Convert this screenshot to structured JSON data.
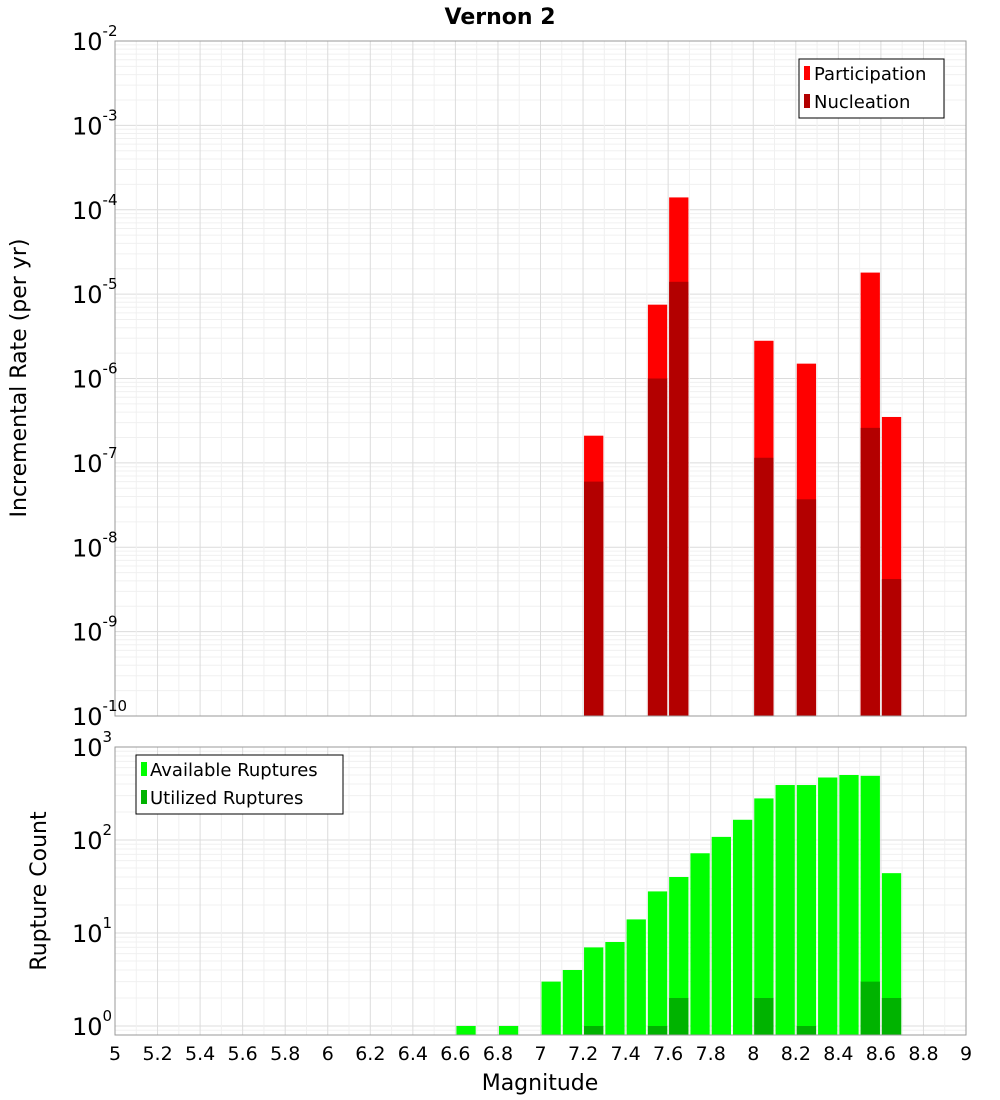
{
  "chart_data": [
    {
      "type": "bar",
      "title": "Vernon 2",
      "xlabel": "",
      "ylabel": "Incremental Rate (per yr)",
      "yscale": "log",
      "xlim": [
        5,
        9
      ],
      "ylim": [
        1e-10,
        0.01
      ],
      "y_ticks": [
        "10^-10",
        "10^-9",
        "10^-8",
        "10^-7",
        "10^-6",
        "10^-5",
        "10^-4",
        "10^-3",
        "10^-2"
      ],
      "grid": true,
      "legend_position": "top-right",
      "series": [
        {
          "name": "Participation",
          "color": "#ff0000",
          "x": [
            7.25,
            7.55,
            7.65,
            8.05,
            8.25,
            8.55,
            8.65
          ],
          "values": [
            2.1e-07,
            7.5e-06,
            0.00014,
            2.8e-06,
            1.5e-06,
            1.8e-05,
            3.5e-07
          ]
        },
        {
          "name": "Nucleation",
          "color": "#b30000",
          "x": [
            7.25,
            7.55,
            7.65,
            8.05,
            8.25,
            8.55,
            8.65
          ],
          "values": [
            6e-08,
            1e-06,
            1.4e-05,
            1.15e-07,
            3.7e-08,
            2.6e-07,
            4.2e-09
          ]
        }
      ]
    },
    {
      "type": "bar",
      "title": "",
      "xlabel": "Magnitude",
      "ylabel": "Rupture Count",
      "yscale": "log",
      "xlim": [
        5,
        9
      ],
      "ylim": [
        0.8,
        1000
      ],
      "x_ticks": [
        "5",
        "5.2",
        "5.4",
        "5.6",
        "5.8",
        "6",
        "6.2",
        "6.4",
        "6.6",
        "6.8",
        "7",
        "7.2",
        "7.4",
        "7.6",
        "7.8",
        "8",
        "8.2",
        "8.4",
        "8.6",
        "8.8",
        "9"
      ],
      "y_ticks": [
        "10^0",
        "10^1",
        "10^2",
        "10^3"
      ],
      "grid": true,
      "legend_position": "top-left",
      "series": [
        {
          "name": "Available Ruptures",
          "color": "#00ff00",
          "x": [
            6.65,
            6.85,
            7.05,
            7.15,
            7.25,
            7.35,
            7.45,
            7.55,
            7.65,
            7.75,
            7.85,
            7.95,
            8.05,
            8.15,
            8.25,
            8.35,
            8.45,
            8.55,
            8.65
          ],
          "values": [
            1,
            1,
            3,
            4,
            7,
            8,
            14,
            28,
            40,
            72,
            108,
            165,
            280,
            390,
            390,
            470,
            500,
            490,
            44
          ]
        },
        {
          "name": "Utilized Ruptures",
          "color": "#00b300",
          "x": [
            7.25,
            7.55,
            7.65,
            8.05,
            8.25,
            8.55,
            8.65
          ],
          "values": [
            1,
            1,
            2,
            2,
            1,
            3,
            2
          ]
        }
      ]
    }
  ]
}
